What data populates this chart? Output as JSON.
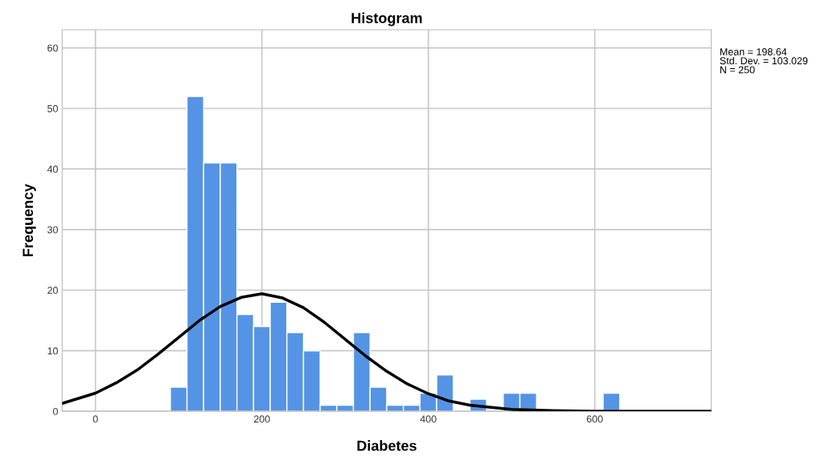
{
  "chart_data": {
    "type": "histogram",
    "title": "Histogram",
    "xlabel": "Diabetes",
    "ylabel": "Frequency",
    "series": [
      {
        "color": "#5594e4",
        "bins": [
          90,
          110,
          130,
          150,
          170,
          190,
          210,
          230,
          250,
          270,
          290,
          310,
          330,
          350,
          370,
          390,
          410,
          430,
          450,
          470,
          490,
          510,
          530,
          550,
          570,
          590,
          610,
          630
        ],
        "values": [
          4,
          52,
          41,
          41,
          16,
          14,
          18,
          13,
          10,
          1,
          1,
          13,
          4,
          1,
          1,
          3,
          6,
          0,
          2,
          0,
          3,
          3,
          0,
          0,
          0,
          0,
          3
        ]
      },
      {
        "type": "line",
        "color": "#000000",
        "x": [
          -40,
          0,
          25,
          50,
          75,
          100,
          125,
          150,
          175,
          200,
          225,
          250,
          275,
          300,
          325,
          350,
          375,
          400,
          425,
          450,
          500,
          550,
          600,
          650,
          700,
          740
        ],
        "values": [
          1.3,
          3.0,
          4.7,
          6.8,
          9.4,
          12.2,
          15.0,
          17.3,
          18.8,
          19.4,
          18.7,
          17.1,
          14.7,
          11.9,
          9.1,
          6.6,
          4.5,
          2.9,
          1.7,
          1.0,
          0.3,
          0.1,
          0,
          0,
          0,
          0
        ]
      }
    ],
    "xlim": [
      -40,
      740
    ],
    "xticks": [
      0,
      200,
      400,
      600
    ],
    "ylim": [
      0,
      63
    ],
    "yticks": [
      0,
      10,
      20,
      30,
      40,
      50,
      60
    ],
    "grid": true,
    "annotations": [
      "Mean = 198.64\nStd. Dev. = 103.029\nN = 250"
    ]
  }
}
